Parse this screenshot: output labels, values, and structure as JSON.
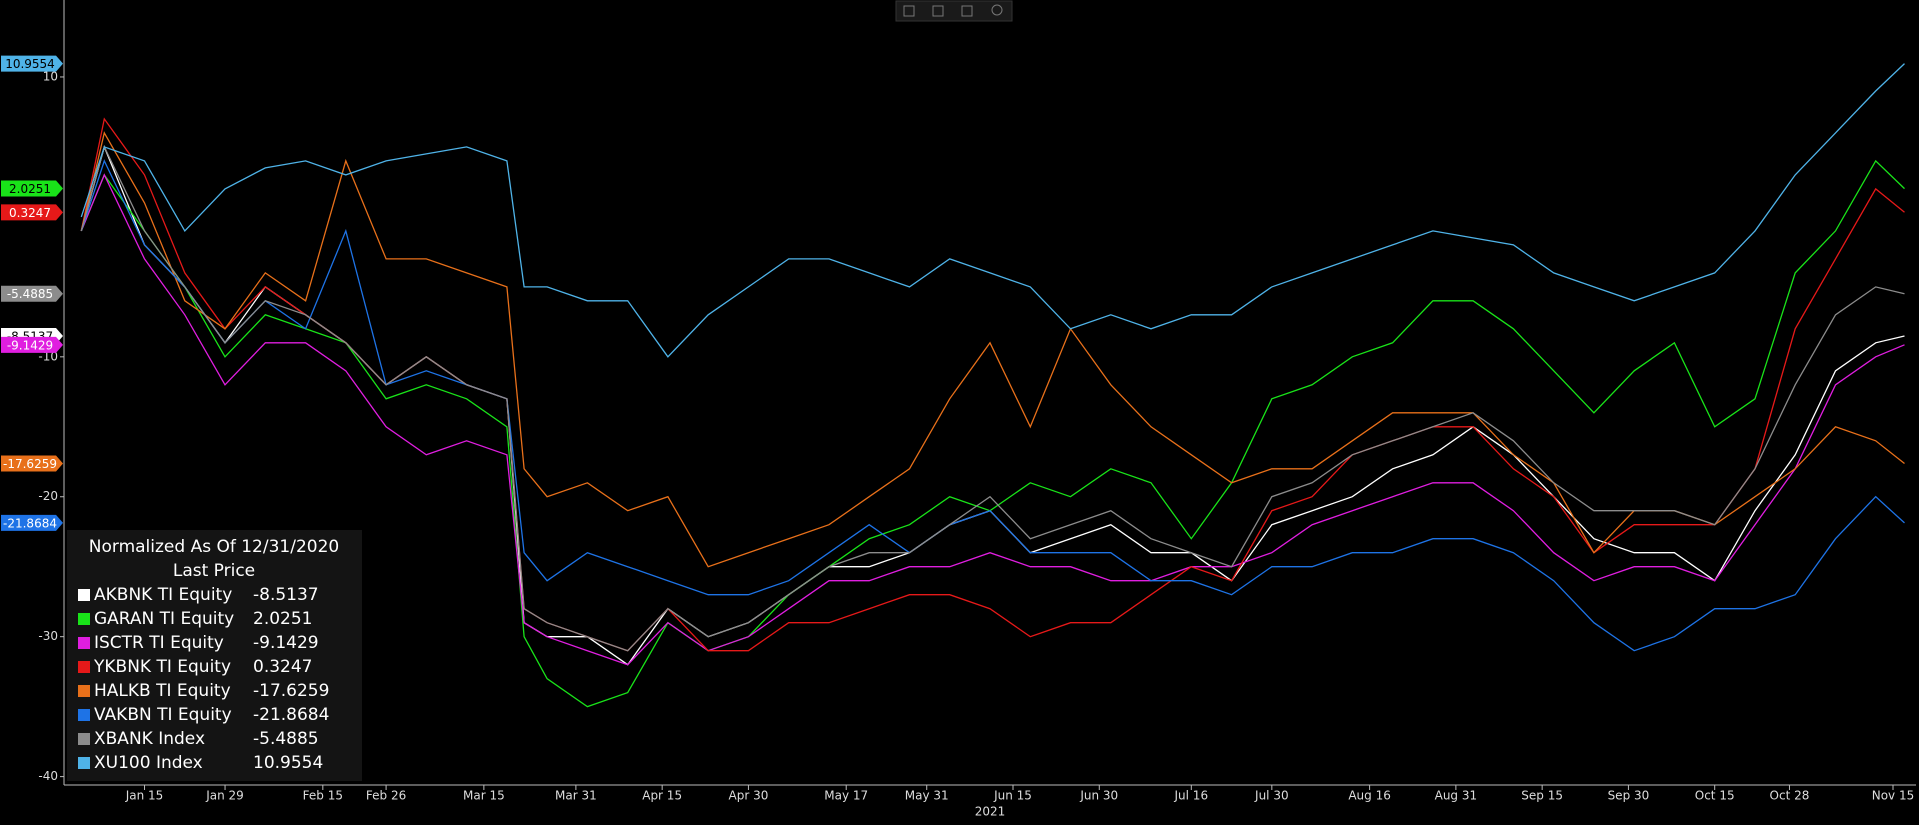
{
  "chart_data": {
    "type": "line",
    "legend_title": "Normalized As Of 12/31/2020",
    "legend_subtitle": "Last Price",
    "xlabel": "2021",
    "x": [
      "2021-01-04",
      "2021-01-08",
      "2021-01-15",
      "2021-01-22",
      "2021-01-29",
      "2021-02-05",
      "2021-02-12",
      "2021-02-19",
      "2021-02-26",
      "2021-03-05",
      "2021-03-12",
      "2021-03-19",
      "2021-03-22",
      "2021-03-26",
      "2021-04-02",
      "2021-04-09",
      "2021-04-16",
      "2021-04-23",
      "2021-04-30",
      "2021-05-07",
      "2021-05-14",
      "2021-05-21",
      "2021-05-28",
      "2021-06-04",
      "2021-06-11",
      "2021-06-18",
      "2021-06-25",
      "2021-07-02",
      "2021-07-09",
      "2021-07-16",
      "2021-07-23",
      "2021-07-30",
      "2021-08-06",
      "2021-08-13",
      "2021-08-20",
      "2021-08-27",
      "2021-09-03",
      "2021-09-10",
      "2021-09-17",
      "2021-09-24",
      "2021-10-01",
      "2021-10-08",
      "2021-10-15",
      "2021-10-22",
      "2021-10-29",
      "2021-11-05",
      "2021-11-12",
      "2021-11-17"
    ],
    "xlim": [
      "2021-01-01",
      "2021-11-19"
    ],
    "xticks": [
      {
        "value": "2021-01-15",
        "label": "Jan 15"
      },
      {
        "value": "2021-01-29",
        "label": "Jan 29"
      },
      {
        "value": "2021-02-15",
        "label": "Feb 15"
      },
      {
        "value": "2021-02-26",
        "label": "Feb 26"
      },
      {
        "value": "2021-03-15",
        "label": "Mar 15"
      },
      {
        "value": "2021-03-31",
        "label": "Mar 31"
      },
      {
        "value": "2021-04-15",
        "label": "Apr 15"
      },
      {
        "value": "2021-04-30",
        "label": "Apr 30"
      },
      {
        "value": "2021-05-17",
        "label": "May 17"
      },
      {
        "value": "2021-05-31",
        "label": "May 31"
      },
      {
        "value": "2021-06-15",
        "label": "Jun 15"
      },
      {
        "value": "2021-06-30",
        "label": "Jun 30"
      },
      {
        "value": "2021-07-16",
        "label": "Jul 16"
      },
      {
        "value": "2021-07-30",
        "label": "Jul 30"
      },
      {
        "value": "2021-08-16",
        "label": "Aug 16"
      },
      {
        "value": "2021-08-31",
        "label": "Aug 31"
      },
      {
        "value": "2021-09-15",
        "label": "Sep 15"
      },
      {
        "value": "2021-09-30",
        "label": "Sep 30"
      },
      {
        "value": "2021-10-15",
        "label": "Oct 15"
      },
      {
        "value": "2021-10-28",
        "label": "Oct 28"
      },
      {
        "value": "2021-11-15",
        "label": "Nov 15"
      }
    ],
    "ylim": [
      -40.6,
      15.5
    ],
    "yticks": [
      -40,
      -30,
      -20,
      -10,
      10
    ],
    "series": [
      {
        "name": "AKBNK TI Equity",
        "color": "#ffffff",
        "values": [
          -1,
          5,
          -2,
          -5,
          -9,
          -5,
          -7,
          -9,
          -12,
          -10,
          -12,
          -13,
          -29,
          -30,
          -30,
          -32,
          -28,
          -30,
          -29,
          -27,
          -25,
          -25,
          -24,
          -22,
          -21,
          -24,
          -23,
          -22,
          -24,
          -24,
          -26,
          -22,
          -21,
          -20,
          -18,
          -17,
          -15,
          -17,
          -20,
          -23,
          -24,
          -24,
          -26,
          -21,
          -17,
          -11,
          -9,
          -8.5137
        ]
      },
      {
        "name": "GARAN TI Equity",
        "color": "#19e319",
        "values": [
          -1,
          3,
          -1,
          -5,
          -10,
          -7,
          -8,
          -9,
          -13,
          -12,
          -13,
          -15,
          -30,
          -33,
          -35,
          -34,
          -29,
          -31,
          -30,
          -27,
          -25,
          -23,
          -22,
          -20,
          -21,
          -19,
          -20,
          -18,
          -19,
          -23,
          -19,
          -13,
          -12,
          -10,
          -9,
          -6,
          -6,
          -8,
          -11,
          -14,
          -11,
          -9,
          -15,
          -13,
          -4,
          -1,
          4,
          2.0251
        ]
      },
      {
        "name": "ISCTR TI Equity",
        "color": "#e01ee0",
        "values": [
          -1,
          3,
          -3,
          -7,
          -12,
          -9,
          -9,
          -11,
          -15,
          -17,
          -16,
          -17,
          -29,
          -30,
          -31,
          -32,
          -29,
          -31,
          -30,
          -28,
          -26,
          -26,
          -25,
          -25,
          -24,
          -25,
          -25,
          -26,
          -26,
          -25,
          -25,
          -24,
          -22,
          -21,
          -20,
          -19,
          -19,
          -21,
          -24,
          -26,
          -25,
          -25,
          -26,
          -22,
          -18,
          -12,
          -10,
          -9.1429
        ]
      },
      {
        "name": "YKBNK TI Equity",
        "color": "#e61919",
        "values": [
          -1,
          7,
          3,
          -4,
          -8,
          -5,
          -7,
          -9,
          -12,
          -10,
          -12,
          -13,
          -28,
          -29,
          -30,
          -31,
          -28,
          -31,
          -31,
          -29,
          -29,
          -28,
          -27,
          -27,
          -28,
          -30,
          -29,
          -29,
          -27,
          -25,
          -26,
          -21,
          -20,
          -17,
          -16,
          -15,
          -15,
          -18,
          -20,
          -24,
          -22,
          -22,
          -22,
          -18,
          -8,
          -3,
          2,
          0.3247
        ]
      },
      {
        "name": "HALKB TI Equity",
        "color": "#e8701a",
        "values": [
          -1,
          6,
          1,
          -6,
          -8,
          -4,
          -6,
          4,
          -3,
          -3,
          -4,
          -5,
          -18,
          -20,
          -19,
          -21,
          -20,
          -25,
          -24,
          -23,
          -22,
          -20,
          -18,
          -13,
          -9,
          -15,
          -8,
          -12,
          -15,
          -17,
          -19,
          -18,
          -18,
          -16,
          -14,
          -14,
          -14,
          -17,
          -19,
          -24,
          -21,
          -21,
          -22,
          -20,
          -18,
          -15,
          -16,
          -17.6259
        ]
      },
      {
        "name": "VAKBN TI Equity",
        "color": "#1e73e6",
        "values": [
          -1,
          4,
          -2,
          -5,
          -9,
          -6,
          -8,
          -1,
          -12,
          -11,
          -12,
          -13,
          -24,
          -26,
          -24,
          -25,
          -26,
          -27,
          -27,
          -26,
          -24,
          -22,
          -24,
          -22,
          -21,
          -24,
          -24,
          -24,
          -26,
          -26,
          -27,
          -25,
          -25,
          -24,
          -24,
          -23,
          -23,
          -24,
          -26,
          -29,
          -31,
          -30,
          -28,
          -28,
          -27,
          -23,
          -20,
          -21.8684
        ]
      },
      {
        "name": "XBANK Index",
        "color": "#8c8c8c",
        "values": [
          -1,
          5,
          -1,
          -5,
          -9,
          -6,
          -7,
          -9,
          -12,
          -10,
          -12,
          -13,
          -28,
          -29,
          -30,
          -31,
          -28,
          -30,
          -29,
          -27,
          -25,
          -24,
          -24,
          -22,
          -20,
          -23,
          -22,
          -21,
          -23,
          -24,
          -25,
          -20,
          -19,
          -17,
          -16,
          -15,
          -14,
          -16,
          -19,
          -21,
          -21,
          -21,
          -22,
          -18,
          -12,
          -7,
          -5,
          -5.4885
        ]
      },
      {
        "name": "XU100 Index",
        "color": "#4fb3e8",
        "values": [
          0,
          5,
          4,
          -1,
          2,
          3.5,
          4,
          3,
          4,
          4.5,
          5,
          4,
          -5,
          -5,
          -6,
          -6,
          -10,
          -7,
          -5,
          -3,
          -3,
          -4,
          -5,
          -3,
          -4,
          -5,
          -8,
          -7,
          -8,
          -7,
          -7,
          -5,
          -4,
          -3,
          -2,
          -1,
          -1.5,
          -2,
          -4,
          -5,
          -6,
          -5,
          -4,
          -1,
          3,
          6,
          9,
          10.9554
        ]
      }
    ]
  }
}
